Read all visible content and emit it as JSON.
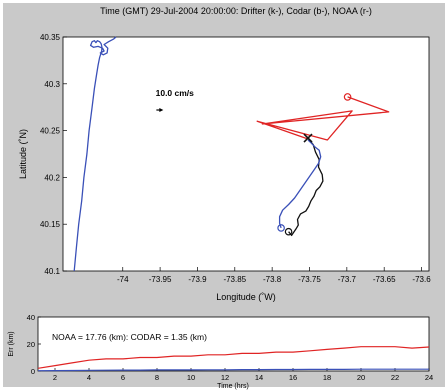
{
  "chart_data": [
    {
      "type": "line",
      "title": "Time (GMT) 29-Jul-2004 20:00:00: Drifter (k-), Codar (b-), NOAA (r-)",
      "xlabel": "Longitude (˚W)",
      "ylabel": "Latitude (˚N)",
      "xlim": [
        -74.08,
        -73.59
      ],
      "ylim": [
        40.1,
        40.35
      ],
      "xticks": [
        -74,
        -73.95,
        -73.9,
        -73.85,
        -73.8,
        -73.75,
        -73.7,
        -73.65,
        -73.6
      ],
      "xtick_labels": [
        "-74",
        "-73.95",
        "-73.9",
        "-73.85",
        "-73.8",
        "-73.75",
        "-73.7",
        "-73.65",
        "-73.6"
      ],
      "yticks": [
        40.1,
        40.15,
        40.2,
        40.25,
        40.3,
        40.35
      ],
      "ytick_labels": [
        "40.1",
        "40.15",
        "40.2",
        "40.25",
        "40.3",
        "40.35"
      ],
      "grid": false,
      "annotation": {
        "text": "10.0 cm/s",
        "x": -73.956,
        "y": 40.287
      },
      "scale_arrow": {
        "x0": -73.955,
        "y": 40.272,
        "x1": -73.947
      },
      "series": [
        {
          "name": "Drifter",
          "color": "#111111",
          "x": [
            -73.752,
            -73.745,
            -73.742,
            -73.737,
            -73.738,
            -73.733,
            -73.732,
            -73.736,
            -73.741,
            -73.744,
            -73.748,
            -73.751,
            -73.755,
            -73.762,
            -73.766,
            -73.765,
            -73.768,
            -73.774,
            -73.778
          ],
          "y": [
            40.242,
            40.235,
            40.227,
            40.219,
            40.211,
            40.203,
            40.196,
            40.19,
            40.186,
            40.18,
            40.175,
            40.169,
            40.164,
            40.161,
            40.155,
            40.149,
            40.145,
            40.138,
            40.142
          ],
          "start_marker": "x",
          "end_marker": "o"
        },
        {
          "name": "Codar",
          "color": "#3a50b8",
          "x": [
            -73.752,
            -73.748,
            -73.742,
            -73.737,
            -73.735,
            -73.738,
            -73.743,
            -73.749,
            -73.756,
            -73.763,
            -73.77,
            -73.778,
            -73.786,
            -73.79,
            -73.79,
            -73.788
          ],
          "y": [
            40.24,
            40.237,
            40.232,
            40.229,
            40.222,
            40.215,
            40.209,
            40.202,
            40.194,
            40.186,
            40.178,
            40.171,
            40.165,
            40.158,
            40.151,
            40.146
          ],
          "start_marker": "x",
          "end_marker": "o"
        },
        {
          "name": "NOAA",
          "color": "#e02424",
          "x": [
            -73.752,
            -73.82,
            -73.726,
            -73.693,
            -73.813,
            -73.644,
            -73.699
          ],
          "y": [
            40.241,
            40.26,
            40.24,
            40.271,
            40.257,
            40.27,
            40.286
          ],
          "start_marker": "x",
          "end_marker": "o"
        },
        {
          "name": "Coastline",
          "color": "#3a50b8",
          "x": [
            -74.065,
            -74.062,
            -74.059,
            -74.055,
            -74.052,
            -74.048,
            -74.045,
            -74.041,
            -74.038,
            -74.035,
            -74.033,
            -74.031,
            -74.029,
            -74.028,
            -74.028,
            -74.029,
            -74.031,
            -74.034,
            -74.036,
            -74.038,
            -74.041,
            -74.043,
            -74.039,
            -74.033,
            -74.027,
            -74.025,
            -74.03,
            -74.026,
            -74.021,
            -74.02,
            -74.025,
            -74.019,
            -74.012,
            -74.009
          ],
          "y": [
            40.1,
            40.125,
            40.15,
            40.175,
            40.2,
            40.225,
            40.25,
            40.275,
            40.295,
            40.31,
            40.32,
            40.328,
            40.333,
            40.336,
            40.34,
            40.343,
            40.345,
            40.346,
            40.344,
            40.346,
            40.345,
            40.341,
            40.339,
            40.34,
            40.338,
            40.335,
            40.333,
            40.331,
            40.333,
            40.338,
            40.342,
            40.345,
            40.348,
            40.35
          ]
        }
      ]
    },
    {
      "type": "line",
      "xlabel": "Time (hrs)",
      "ylabel": "Err (km)",
      "xlim": [
        1,
        24
      ],
      "ylim": [
        0,
        40
      ],
      "xticks": [
        2,
        4,
        6,
        8,
        10,
        12,
        14,
        16,
        18,
        20,
        22,
        24
      ],
      "xtick_labels": [
        "2",
        "4",
        "6",
        "8",
        "10",
        "12",
        "14",
        "16",
        "18",
        "20",
        "22",
        "24"
      ],
      "yticks": [
        0,
        20,
        40
      ],
      "ytick_labels": [
        "0",
        "20",
        "40"
      ],
      "annotation": "NOAA = 17.76 (km): CODAR = 1.35 (km)",
      "series": [
        {
          "name": "NOAA",
          "color": "#e02424",
          "x": [
            1,
            2,
            3,
            4,
            5,
            6,
            7,
            8,
            9,
            10,
            11,
            12,
            13,
            14,
            15,
            16,
            17,
            18,
            19,
            20,
            21,
            22,
            23,
            24
          ],
          "y": [
            2,
            4,
            6,
            8,
            9,
            9,
            10,
            10,
            11,
            11,
            12,
            12,
            13,
            13,
            14,
            14,
            15,
            16,
            17,
            18,
            18,
            18,
            17,
            17.76
          ]
        },
        {
          "name": "CODAR",
          "color": "#3a50b8",
          "x": [
            1,
            2,
            3,
            4,
            5,
            6,
            7,
            8,
            9,
            10,
            11,
            12,
            13,
            14,
            15,
            16,
            17,
            18,
            19,
            20,
            21,
            22,
            23,
            24
          ],
          "y": [
            0.2,
            0.3,
            0.4,
            0.5,
            0.6,
            0.7,
            0.7,
            0.8,
            0.8,
            0.8,
            0.9,
            0.9,
            1.0,
            1.0,
            1.1,
            1.1,
            1.2,
            1.2,
            1.2,
            1.3,
            1.3,
            1.3,
            1.35,
            1.35
          ]
        }
      ]
    }
  ]
}
